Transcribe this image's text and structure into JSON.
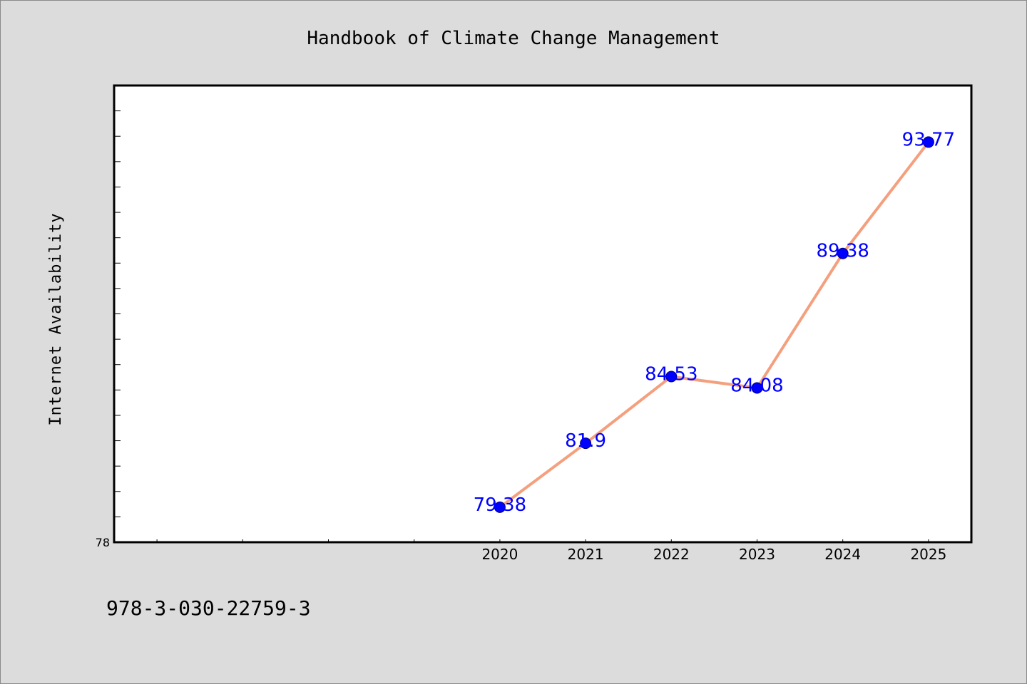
{
  "chart_data": {
    "type": "line",
    "title": "Handbook of Climate Change Management",
    "xlabel": "",
    "ylabel": "Internet Availability",
    "x": [
      "2020",
      "2021",
      "2022",
      "2023",
      "2024",
      "2025"
    ],
    "values": [
      79.38,
      81.9,
      84.53,
      84.08,
      89.38,
      93.77
    ],
    "data_labels": [
      "79.38",
      "81.9",
      "84.53",
      "84.08",
      "89.38",
      "93.77"
    ],
    "y_tick_labels": [
      "78"
    ],
    "ylim": [
      78,
      96
    ],
    "y_minor_step": 1,
    "x_slots": 10,
    "x_first_data_slot": 4,
    "grid": false,
    "legend": "none",
    "line_color": "#f4a07e",
    "marker_color": "#0000ff",
    "label_color": "#0000ff"
  },
  "footer": {
    "isbn": "978-3-030-22759-3"
  }
}
